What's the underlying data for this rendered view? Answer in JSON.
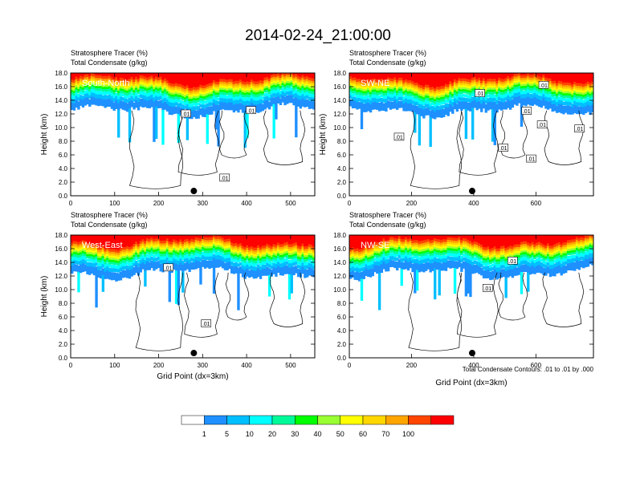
{
  "figure": {
    "title": "2014-02-24_21:00:00",
    "contour_note": "Total Condensate Contours: .01 to .01 by .000"
  },
  "colorbar": {
    "levels": [
      "1",
      "5",
      "10",
      "20",
      "30",
      "40",
      "50",
      "60",
      "70",
      "100"
    ],
    "colors": [
      "#ffffff",
      "#1e90ff",
      "#00bfff",
      "#00ffff",
      "#00fa9a",
      "#00ff00",
      "#9aff32",
      "#ffff00",
      "#ffd700",
      "#ffa500",
      "#ff4500",
      "#ff0000"
    ]
  },
  "chart_data": [
    {
      "type": "heatmap",
      "panel": "South-North",
      "header_line1": "Stratosphere Tracer   (%)",
      "header_line2": "Total Condensate   (g/kg)",
      "ylabel": "Height (km)",
      "xlabel": "",
      "xlim": [
        0,
        555
      ],
      "ylim": [
        0,
        18
      ],
      "xticks": [
        "0",
        "100",
        "200",
        "300",
        "400",
        "500"
      ],
      "yticks": [
        "0.0",
        "2.0",
        "4.0",
        "6.0",
        "8.0",
        "10.0",
        "12.0",
        "14.0",
        "16.0",
        "18.0"
      ],
      "marker_x": 280,
      "contour_labels": [
        {
          "text": ".01",
          "x": 262,
          "y": 12.0
        },
        {
          "text": ".01",
          "x": 410,
          "y": 12.5
        },
        {
          "text": ".01",
          "x": 350,
          "y": 2.6
        }
      ]
    },
    {
      "type": "heatmap",
      "panel": "SW-NE",
      "header_line1": "Stratosphere Tracer   (%)",
      "header_line2": "Total Condensate   (g/kg)",
      "ylabel": "Height (km)",
      "xlabel": "",
      "xlim": [
        0,
        785
      ],
      "ylim": [
        0,
        18
      ],
      "xticks": [
        "0",
        "200",
        "400",
        "600"
      ],
      "yticks": [
        "0.0",
        "2.0",
        "4.0",
        "6.0",
        "8.0",
        "10.0",
        "12.0",
        "14.0",
        "16.0",
        "18.0"
      ],
      "marker_x": 395,
      "contour_labels": [
        {
          "text": ".01",
          "x": 160,
          "y": 8.6
        },
        {
          "text": ".01",
          "x": 420,
          "y": 15.0
        },
        {
          "text": ".01",
          "x": 495,
          "y": 7.0
        },
        {
          "text": ".01",
          "x": 570,
          "y": 12.4
        },
        {
          "text": ".01",
          "x": 585,
          "y": 5.4
        },
        {
          "text": ".01",
          "x": 625,
          "y": 16.2
        },
        {
          "text": ".01",
          "x": 620,
          "y": 10.4
        },
        {
          "text": ".01",
          "x": 740,
          "y": 9.8
        }
      ]
    },
    {
      "type": "heatmap",
      "panel": "West-East",
      "header_line1": "Stratosphere Tracer   (%)",
      "header_line2": "Total Condensate   (g/kg)",
      "ylabel": "Height (km)",
      "xlabel": "Grid Point (dx=3km)",
      "xlim": [
        0,
        555
      ],
      "ylim": [
        0,
        18
      ],
      "xticks": [
        "0",
        "100",
        "200",
        "300",
        "400",
        "500"
      ],
      "yticks": [
        "0.0",
        "2.0",
        "4.0",
        "6.0",
        "8.0",
        "10.0",
        "12.0",
        "14.0",
        "16.0",
        "18.0"
      ],
      "marker_x": 280,
      "contour_labels": [
        {
          "text": ".01",
          "x": 222,
          "y": 13.2
        },
        {
          "text": ".01",
          "x": 308,
          "y": 5.0
        }
      ]
    },
    {
      "type": "heatmap",
      "panel": "NW-SE",
      "header_line1": "Stratosphere Tracer   (%)",
      "header_line2": "Total Condensate   (g/kg)",
      "ylabel": "",
      "xlabel": "Grid Point (dx=3km)",
      "xlim": [
        0,
        785
      ],
      "ylim": [
        0,
        18
      ],
      "xticks": [
        "0",
        "200",
        "400",
        "600"
      ],
      "yticks": [
        "0.0",
        "2.0",
        "4.0",
        "6.0",
        "8.0",
        "10.0",
        "12.0",
        "14.0",
        "16.0",
        "18.0"
      ],
      "marker_x": 395,
      "contour_labels": [
        {
          "text": ".01",
          "x": 525,
          "y": 14.2
        },
        {
          "text": ".01",
          "x": 445,
          "y": 10.2
        }
      ]
    }
  ]
}
